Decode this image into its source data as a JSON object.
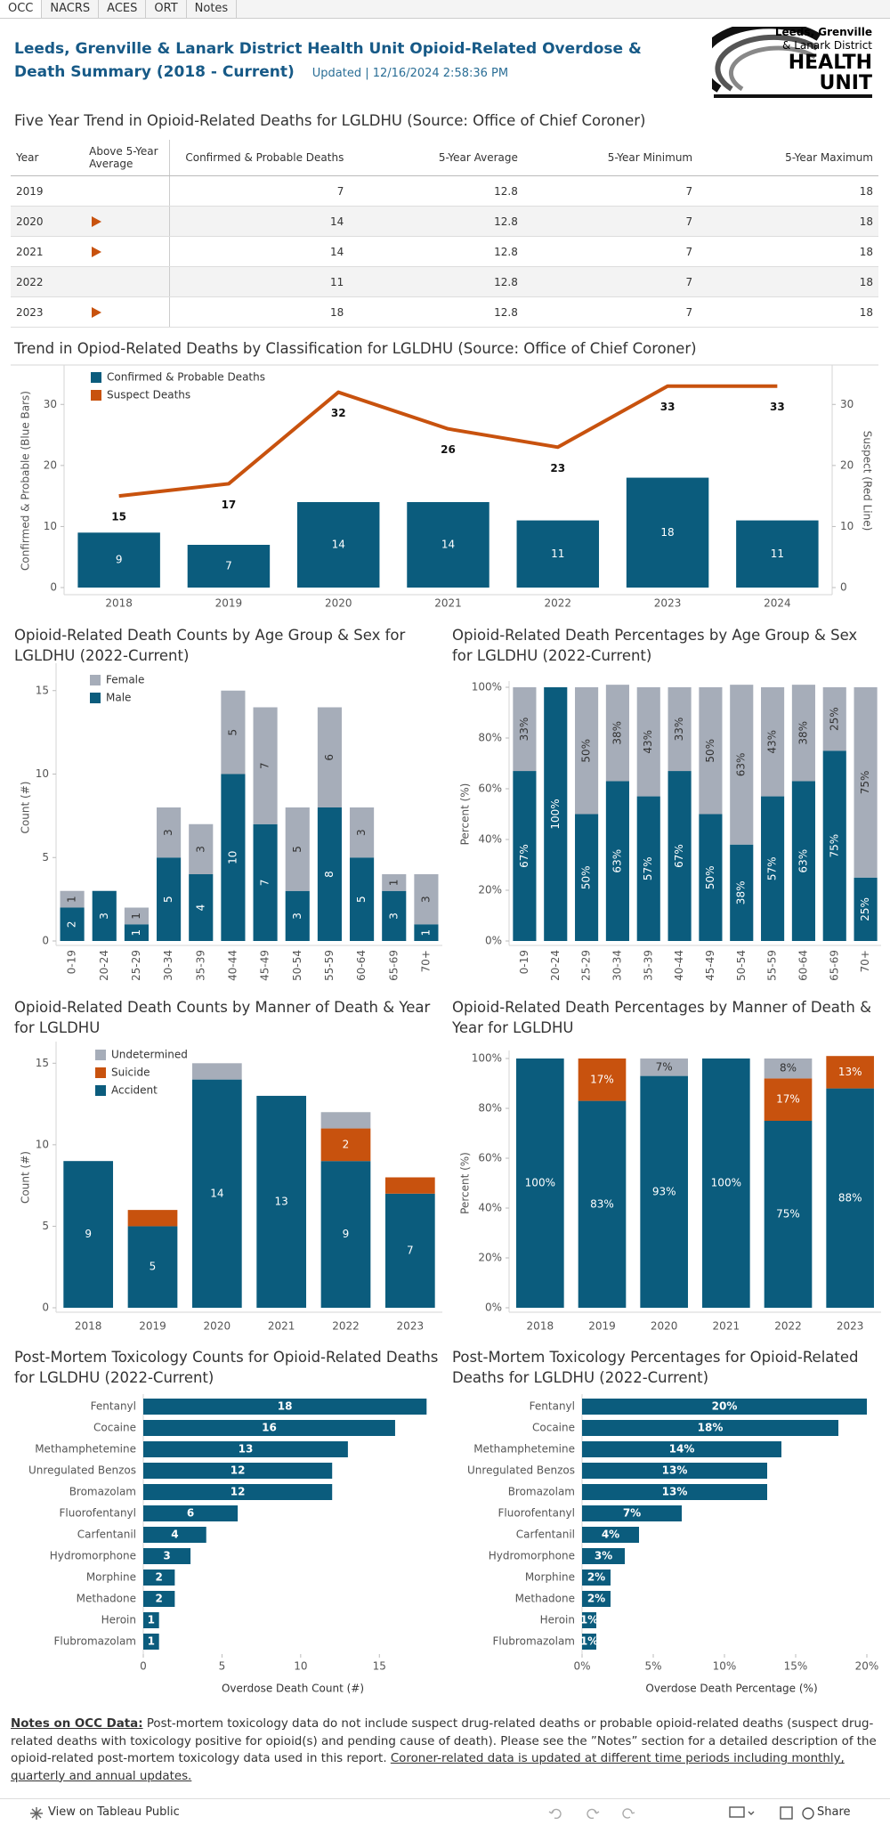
{
  "tabs": [
    "OCC",
    "NACRS",
    "ACES",
    "ORT",
    "Notes"
  ],
  "header": {
    "title": "Leeds, Grenville & Lanark District Health Unit Opioid-Related Overdose & Death Summary (2018 - Current)",
    "updated": "Updated | 12/16/2024 2:58:36 PM",
    "logo": [
      "Leeds, Grenville",
      "& Lanark District",
      "HEALTH",
      "UNIT"
    ]
  },
  "table": {
    "title": "Five Year Trend in Opioid-Related Deaths for LGLDHU (Source: Office of Chief Coroner)",
    "columns": [
      "Year",
      "Above 5-Year Average",
      "Confirmed & Probable Deaths",
      "5-Year Average",
      "5-Year Minimum",
      "5-Year Maximum"
    ],
    "rows": [
      {
        "year": "2019",
        "above": false,
        "deaths": 7,
        "avg": 12.8,
        "min": 7,
        "max": 18
      },
      {
        "year": "2020",
        "above": true,
        "deaths": 14,
        "avg": 12.8,
        "min": 7,
        "max": 18
      },
      {
        "year": "2021",
        "above": true,
        "deaths": 14,
        "avg": 12.8,
        "min": 7,
        "max": 18
      },
      {
        "year": "2022",
        "above": false,
        "deaths": 11,
        "avg": 12.8,
        "min": 7,
        "max": 18
      },
      {
        "year": "2023",
        "above": true,
        "deaths": 18,
        "avg": 12.8,
        "min": 7,
        "max": 18
      }
    ],
    "arrow_color": "#c8520e"
  },
  "chart_data": [
    {
      "type": "combo",
      "title": "Trend in Opiod-Related Deaths by Classification for LGLDHU (Source: Office of Chief Coroner)",
      "categories": [
        "2018",
        "2019",
        "2020",
        "2021",
        "2022",
        "2023",
        "2024"
      ],
      "y_label": "Confirmed & Probable (Blue Bars)",
      "y2_label": "Suspect (Red Line)",
      "ylim": [
        0,
        35
      ],
      "yticks": [
        0,
        10,
        20,
        30
      ],
      "y2lim": [
        0,
        35
      ],
      "y2ticks": [
        0,
        10,
        20,
        30
      ],
      "legend": "top-left",
      "grid": false,
      "series": [
        {
          "name": "Confirmed & Probable Deaths",
          "type": "bar",
          "color": "#0b5c7d",
          "values": [
            9,
            7,
            14,
            14,
            11,
            18,
            11
          ]
        },
        {
          "name": "Suspect Deaths",
          "type": "line",
          "axis": "y2",
          "color": "#c8520e",
          "values": [
            15,
            17,
            32,
            26,
            23,
            33,
            33
          ]
        }
      ]
    },
    {
      "type": "stacked_bar",
      "title": "Opioid-Related Death Counts by Age Group & Sex for LGLDHU (2022-Current)",
      "categories": [
        "0-19",
        "20-24",
        "25-29",
        "30-34",
        "35-39",
        "40-44",
        "45-49",
        "50-54",
        "55-59",
        "60-64",
        "65-69",
        "70+"
      ],
      "y_label": "Count (#)",
      "ylim": [
        0,
        16
      ],
      "yticks": [
        0,
        5,
        10,
        15
      ],
      "legend": "top-left",
      "grid": false,
      "series": [
        {
          "name": "Male",
          "color": "#0b5c7d",
          "values": [
            2,
            3,
            1,
            5,
            4,
            10,
            7,
            3,
            8,
            5,
            3,
            1
          ]
        },
        {
          "name": "Female",
          "color": "#a6adb9",
          "values": [
            1,
            null,
            1,
            3,
            3,
            5,
            7,
            5,
            6,
            3,
            1,
            3
          ]
        }
      ]
    },
    {
      "type": "stacked_bar",
      "title": "Opioid-Related Death Percentages by Age Group & Sex for LGLDHU (2022-Current)",
      "categories": [
        "0-19",
        "20-24",
        "25-29",
        "30-34",
        "35-39",
        "40-44",
        "45-49",
        "50-54",
        "55-59",
        "60-64",
        "65-69",
        "70+"
      ],
      "y_label": "Percent (%)",
      "ylim": [
        0,
        100
      ],
      "yticks": [
        {
          "value": 0,
          "label": "0%"
        },
        {
          "value": 20,
          "label": "20%"
        },
        {
          "value": 40,
          "label": "40%"
        },
        {
          "value": 60,
          "label": "60%"
        },
        {
          "value": 80,
          "label": "80%"
        },
        {
          "value": 100,
          "label": "100%"
        }
      ],
      "grid": false,
      "series": [
        {
          "name": "Male",
          "color": "#0b5c7d",
          "values": [
            67,
            100,
            50,
            63,
            57,
            67,
            50,
            38,
            57,
            63,
            75,
            25
          ],
          "value_labels": [
            "67%",
            "100%",
            "50%",
            "63%",
            "57%",
            "67%",
            "50%",
            "38%",
            "57%",
            "63%",
            "75%",
            "25%"
          ]
        },
        {
          "name": "Female",
          "color": "#a6adb9",
          "values": [
            33,
            null,
            50,
            38,
            43,
            33,
            50,
            63,
            43,
            38,
            25,
            75
          ],
          "value_labels": [
            "33%",
            null,
            "50%",
            "38%",
            "43%",
            "33%",
            "50%",
            "63%",
            "43%",
            "38%",
            "25%",
            "75%"
          ]
        }
      ]
    },
    {
      "type": "stacked_bar",
      "title": "Opioid-Related Death Counts by Manner of Death & Year for LGLDHU",
      "categories": [
        "2018",
        "2019",
        "2020",
        "2021",
        "2022",
        "2023"
      ],
      "y_label": "Count (#)",
      "ylim": [
        0,
        16
      ],
      "yticks": [
        0,
        5,
        10,
        15
      ],
      "legend": "top-left",
      "grid": false,
      "series": [
        {
          "name": "Accident",
          "color": "#0b5c7d",
          "values": [
            9,
            5,
            14,
            13,
            9,
            7
          ]
        },
        {
          "name": "Suicide",
          "color": "#c8520e",
          "values": [
            null,
            1,
            null,
            null,
            2,
            1
          ]
        },
        {
          "name": "Undetermined",
          "color": "#a6adb9",
          "values": [
            null,
            null,
            1,
            null,
            1,
            null
          ]
        }
      ]
    },
    {
      "type": "stacked_bar",
      "title": "Opioid-Related Death Percentages by Manner of Death & Year for LGLDHU",
      "categories": [
        "2018",
        "2019",
        "2020",
        "2021",
        "2022",
        "2023"
      ],
      "y_label": "Percent (%)",
      "ylim": [
        0,
        100
      ],
      "yticks": [
        {
          "value": 0,
          "label": "0%"
        },
        {
          "value": 20,
          "label": "20%"
        },
        {
          "value": 40,
          "label": "40%"
        },
        {
          "value": 60,
          "label": "60%"
        },
        {
          "value": 80,
          "label": "80%"
        },
        {
          "value": 100,
          "label": "100%"
        }
      ],
      "grid": false,
      "series": [
        {
          "name": "Accident",
          "color": "#0b5c7d",
          "values": [
            100,
            83,
            93,
            100,
            75,
            88
          ],
          "value_labels": [
            "100%",
            "83%",
            "93%",
            "100%",
            "75%",
            "88%"
          ]
        },
        {
          "name": "Suicide",
          "color": "#c8520e",
          "values": [
            null,
            17,
            null,
            null,
            17,
            13
          ],
          "value_labels": [
            null,
            "17%",
            null,
            null,
            "17%",
            "13%"
          ]
        },
        {
          "name": "Undetermined",
          "color": "#a6adb9",
          "values": [
            null,
            null,
            7,
            null,
            8,
            null
          ],
          "value_labels": [
            null,
            null,
            "7%",
            null,
            "8%",
            null
          ]
        }
      ]
    },
    {
      "type": "hbar",
      "title": "Post-Mortem Toxicology Counts for Opioid-Related Deaths for LGLDHU (2022-Current)",
      "categories": [
        "Fentanyl",
        "Cocaine",
        "Methamphetemine",
        "Unregulated Benzos",
        "Bromazolam",
        "Fluorofentanyl",
        "Carfentanil",
        "Hydromorphone",
        "Morphine",
        "Methadone",
        "Heroin",
        "Flubromazolam"
      ],
      "values": [
        18,
        16,
        13,
        12,
        12,
        6,
        4,
        3,
        2,
        2,
        1,
        1
      ],
      "color": "#0b5c7d",
      "x_label": "Overdose Death Count (#)",
      "xlim": [
        0,
        19
      ],
      "xticks": [
        0,
        5,
        10,
        15
      ],
      "grid": false
    },
    {
      "type": "hbar",
      "title": "Post-Mortem Toxicology Percentages for Opioid-Related Deaths for LGLDHU (2022-Current)",
      "categories": [
        "Fentanyl",
        "Cocaine",
        "Methamphetemine",
        "Unregulated Benzos",
        "Bromazolam",
        "Fluorofentanyl",
        "Carfentanil",
        "Hydromorphone",
        "Morphine",
        "Methadone",
        "Heroin",
        "Flubromazolam"
      ],
      "values": [
        20,
        18,
        14,
        13,
        13,
        7,
        4,
        3,
        2,
        2,
        1,
        1
      ],
      "value_labels": [
        "20%",
        "18%",
        "14%",
        "13%",
        "13%",
        "7%",
        "4%",
        "3%",
        "2%",
        "2%",
        "1%",
        "1%"
      ],
      "color": "#0b5c7d",
      "x_label": "Overdose Death Percentage (%)",
      "xlim": [
        0,
        21
      ],
      "xticks": [
        {
          "value": 0,
          "label": "0%"
        },
        {
          "value": 5,
          "label": "5%"
        },
        {
          "value": 10,
          "label": "10%"
        },
        {
          "value": 15,
          "label": "15%"
        },
        {
          "value": 20,
          "label": "20%"
        }
      ],
      "grid": false
    }
  ],
  "notes": {
    "heading": "Notes on OCC Data:",
    "text": " Post-mortem toxicology data do not include suspect drug-related deaths or probable opioid-related deaths (suspect drug-related deaths with toxicology positive for opioid(s) and pending cause of death).  Please see the ”Notes” section for a detailed description of the opioid-related post-mortem toxicology data used in this report.  ",
    "link": "Coroner-related data is updated at different time periods including monthly, quarterly and annual updates."
  },
  "footer": {
    "left": "View on Tableau Public",
    "share": "Share"
  }
}
